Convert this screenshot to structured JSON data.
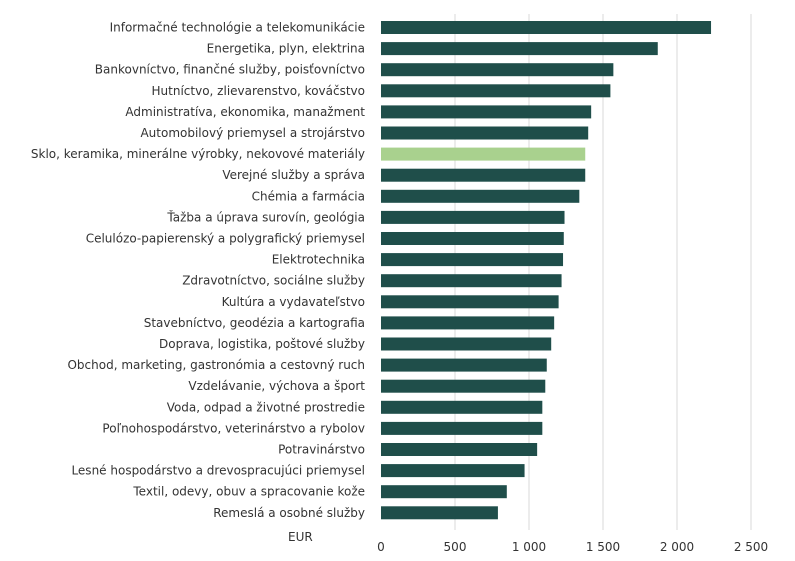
{
  "chart_data": {
    "type": "bar",
    "orientation": "horizontal",
    "title": "",
    "xlabel": "",
    "unit_label": "EUR",
    "xlim": [
      0,
      2500
    ],
    "x_ticks": [
      0,
      500,
      1000,
      1500,
      2000,
      2500
    ],
    "x_tick_labels": [
      "0",
      "500",
      "1 000",
      "1 500",
      "2 000",
      "2 500"
    ],
    "grid": "vertical",
    "legend": "none",
    "colors": {
      "bar": "#1f4e4a",
      "highlight": "#a9d18e",
      "grid": "#d9d9d9"
    },
    "highlight_index": 6,
    "categories": [
      "Informačné technológie a telekomunikácie",
      "Energetika, plyn, elektrina",
      "Bankovníctvo, finančné služby, poisťovníctvo",
      "Hutníctvo, zlievarenstvo, kováčstvo",
      "Administratíva, ekonomika, manažment",
      "Automobilový priemysel a strojárstvo",
      "Sklo, keramika, minerálne výrobky, nekovové materiály",
      "Verejné služby a správa",
      "Chémia a farmácia",
      "Ťažba a úprava surovín, geológia",
      "Celulózo-papierenský a polygrafický priemysel",
      "Elektrotechnika",
      "Zdravotníctvo, sociálne služby",
      "Kultúra a vydavateľstvo",
      "Stavebníctvo, geodézia a kartografia",
      "Doprava, logistika, poštové služby",
      "Obchod, marketing, gastronómia a cestovný ruch",
      "Vzdelávanie, výchova a šport",
      "Voda, odpad a životné prostredie",
      "Poľnohospodárstvo, veterinárstvo a rybolov",
      "Potravinárstvo",
      "Lesné hospodárstvo a drevospracujúci priemysel",
      "Textil, odevy, obuv a spracovanie kože",
      "Remeslá a osobné služby"
    ],
    "values": [
      2230,
      1870,
      1570,
      1550,
      1420,
      1400,
      1380,
      1380,
      1340,
      1240,
      1235,
      1230,
      1220,
      1200,
      1170,
      1150,
      1120,
      1110,
      1090,
      1090,
      1055,
      970,
      850,
      790
    ]
  }
}
